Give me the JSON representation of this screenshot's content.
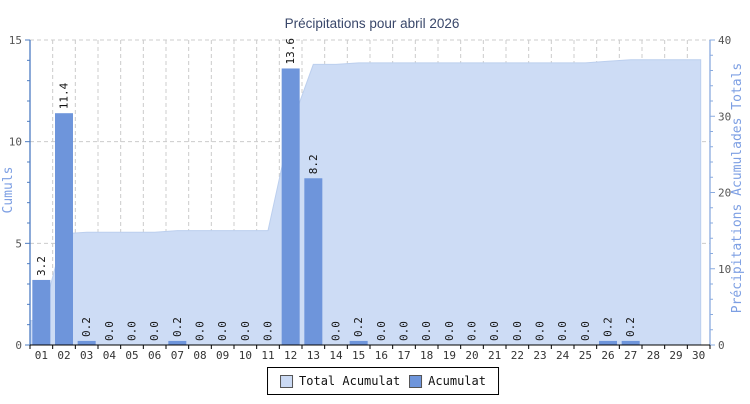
{
  "chart_data": {
    "type": "bar",
    "title": "Précipitations pour abril 2026",
    "categories": [
      "01",
      "02",
      "03",
      "04",
      "05",
      "06",
      "07",
      "08",
      "09",
      "10",
      "11",
      "12",
      "13",
      "14",
      "15",
      "16",
      "17",
      "18",
      "19",
      "20",
      "21",
      "22",
      "23",
      "24",
      "25",
      "26",
      "27",
      "28",
      "29",
      "30"
    ],
    "series": [
      {
        "name": "Acumulat",
        "type": "bar",
        "axis": "left",
        "values": [
          3.2,
          11.4,
          0.2,
          0.0,
          0.0,
          0.0,
          0.2,
          0.0,
          0.0,
          0.0,
          0.0,
          13.6,
          8.2,
          0.0,
          0.2,
          0.0,
          0.0,
          0.0,
          0.0,
          0.0,
          0.0,
          0.0,
          0.0,
          0.0,
          0.0,
          0.2,
          0.2,
          null,
          null,
          null
        ]
      },
      {
        "name": "Total Acumulat",
        "type": "area",
        "axis": "right",
        "values": [
          3.2,
          14.6,
          14.8,
          14.8,
          14.8,
          14.8,
          15.0,
          15.0,
          15.0,
          15.0,
          15.0,
          28.6,
          36.8,
          36.8,
          37.0,
          37.0,
          37.0,
          37.0,
          37.0,
          37.0,
          37.0,
          37.0,
          37.0,
          37.0,
          37.0,
          37.2,
          37.4,
          37.4,
          37.4,
          37.4
        ]
      }
    ],
    "left_axis": {
      "label": "Cumuls",
      "min": 0,
      "max": 15,
      "major_ticks": [
        0,
        5,
        10,
        15
      ],
      "minor_step": 1
    },
    "right_axis": {
      "label": "Précipitations Acumulades Totals",
      "min": 0,
      "max": 40,
      "major_ticks": [
        0,
        10,
        20,
        30,
        40
      ],
      "minor_step": 2
    },
    "grid": "dashed",
    "legend_position": "bottom",
    "legend": [
      {
        "label": "Total Acumulat",
        "color": "#cbdaf4"
      },
      {
        "label": "Acumulat",
        "color": "#6e95db"
      }
    ],
    "colors": {
      "bar": "#6e95db",
      "area_fill": "#cddcf5",
      "area_edge": "#bccfee",
      "left_axis_line": "#4d7cc2",
      "right_axis_line": "#8aabdf",
      "bottom_axis_line": "#000000",
      "grid_line": "#cccccc",
      "tick_text": "#555555",
      "day_text": "#333333",
      "value_label_text": "#111111",
      "axis_label_text": "#7d9fe3",
      "title_text": "#39476a"
    }
  }
}
